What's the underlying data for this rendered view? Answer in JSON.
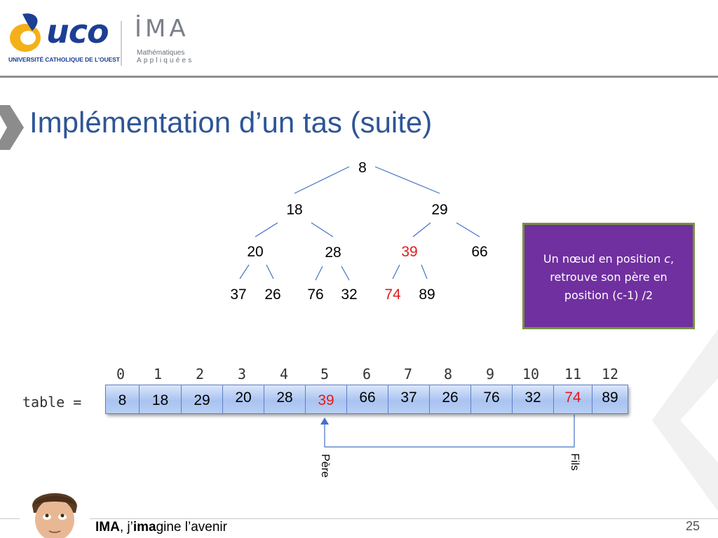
{
  "header": {
    "logo_left_text": "uco",
    "logo_left_sub": "UNIVERSITÉ CATHOLIQUE DE L'OUEST",
    "logo_right_text": "İMA",
    "logo_right_sub1": "Mathématiques",
    "logo_right_sub2": "Appliquées"
  },
  "title": "Implémentation d’un tas (suite)",
  "tree": {
    "root": "8",
    "l1": [
      "18",
      "29"
    ],
    "l2": [
      "20",
      "28",
      "39",
      "66"
    ],
    "l3": [
      "37",
      "26",
      "76",
      "32",
      "74",
      "89"
    ],
    "highlight_color": "#e31b1b"
  },
  "info_box": {
    "line1_prefix": "Un nœud en position ",
    "line1_var": "c",
    "line1_suffix": ",",
    "line2": "retrouve son père en",
    "line3": "position (c-1) /2",
    "background": "#7030a0",
    "border": "#76923c"
  },
  "table": {
    "label": "table =",
    "indices": [
      "0",
      "1",
      "2",
      "3",
      "4",
      "5",
      "6",
      "7",
      "8",
      "9",
      "10",
      "11",
      "12"
    ],
    "values": [
      "8",
      "18",
      "29",
      "20",
      "28",
      "39",
      "66",
      "37",
      "26",
      "76",
      "32",
      "74",
      "89"
    ]
  },
  "arrow": {
    "left_label": "Père",
    "right_label": "Fils"
  },
  "footer": {
    "brand": "IMA",
    "sep": ", j’",
    "bold_part": "ima",
    "rest": "gine l’avenir",
    "page_number": "25"
  }
}
